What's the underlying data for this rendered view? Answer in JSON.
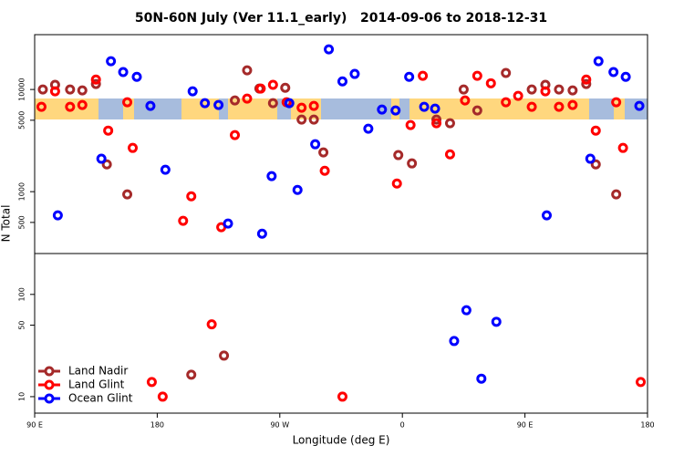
{
  "chart_data": [
    {
      "type": "scatter",
      "title": "50N-60N July (Ver 11.1_early)   2014-09-06 to 2018-12-31",
      "ylabel": "N Total",
      "xlim": [
        90,
        540
      ],
      "ylim": [
        248,
        34400
      ],
      "log_y": true,
      "yticks": [
        500,
        1000,
        5000,
        10000
      ],
      "series": [
        {
          "color": "#a52a2a",
          "x": [
            96,
            105,
            116,
            125,
            135,
            143,
            158,
            237,
            246,
            255,
            265,
            274,
            286,
            295,
            302,
            357,
            367,
            385,
            395,
            405,
            415,
            436,
            455,
            465,
            475,
            485,
            495,
            502,
            517
          ],
          "values": [
            10000,
            11100,
            10000,
            9800,
            11300,
            1850,
            940,
            7810,
            15400,
            10200,
            7350,
            10400,
            5070,
            5070,
            2420,
            2280,
            1890,
            5070,
            4670,
            10000,
            6230,
            14500,
            10000,
            11100,
            10000,
            9800,
            11300,
            1850,
            940
          ]
        },
        {
          "color": "#ff0000",
          "x": [
            95,
            105,
            116,
            125,
            135,
            144,
            158,
            162,
            205,
            199,
            227,
            237,
            246,
            256,
            265,
            275,
            286,
            295,
            303,
            356,
            366,
            375,
            385,
            395,
            406,
            415,
            425,
            436,
            445,
            455,
            465,
            475,
            485,
            495,
            502,
            517,
            522
          ],
          "values": [
            6770,
            9600,
            6770,
            7050,
            12500,
            3960,
            7500,
            2680,
            900,
            518,
            449,
            3580,
            8140,
            10200,
            11100,
            7500,
            6630,
            6910,
            1600,
            1200,
            4490,
            13600,
            4670,
            2320,
            7810,
            13600,
            11500,
            7500,
            8660,
            6770,
            9600,
            6770,
            7050,
            12500,
            3960,
            7500,
            2680
          ]
        },
        {
          "color": "#0000ff",
          "x": [
            107,
            139,
            146,
            155,
            165,
            175,
            186,
            206,
            215,
            225,
            232,
            257,
            264,
            277,
            283,
            296,
            306,
            316,
            325,
            335,
            345,
            355,
            365,
            376,
            384,
            466,
            498,
            504,
            515,
            524,
            534
          ],
          "values": [
            586,
            2100,
            18900,
            14800,
            13300,
            6910,
            1640,
            9600,
            7350,
            7050,
            487,
            388,
            1420,
            7350,
            1040,
            2910,
            24700,
            12000,
            14200,
            4130,
            6360,
            6230,
            13300,
            6770,
            6490,
            586,
            2100,
            18900,
            14800,
            13300,
            6910
          ]
        }
      ]
    },
    {
      "type": "scatter",
      "xlabel": "Longitude (deg E)",
      "xlim": [
        90,
        540
      ],
      "ylim": [
        6.9,
        251
      ],
      "log_y": true,
      "xticks": [
        {
          "value": 90,
          "label": "90 E"
        },
        180,
        {
          "value": 270,
          "label": "90 W"
        },
        {
          "value": 360,
          "label": "0"
        },
        {
          "value": 450,
          "label": "90 E"
        },
        {
          "value": 540,
          "label": "180"
        }
      ],
      "yticks": [
        10,
        50,
        100
      ],
      "legend": "bottom-left",
      "series": [
        {
          "name": "Land Nadir",
          "color": "#a52a2a",
          "x": [
            205,
            229
          ],
          "values": [
            16.4,
            25.2
          ]
        },
        {
          "name": "Land Glint",
          "color": "#ff0000",
          "x": [
            176,
            184,
            220,
            316,
            535
          ],
          "values": [
            13.9,
            10,
            51,
            10,
            13.9
          ]
        },
        {
          "name": "Ocean Glint",
          "color": "#0000ff",
          "x": [
            398,
            407,
            418,
            429
          ],
          "values": [
            35,
            70,
            15,
            54
          ]
        }
      ]
    }
  ]
}
